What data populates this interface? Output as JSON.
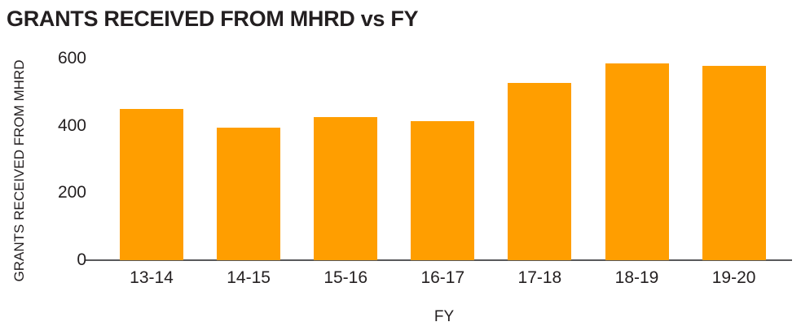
{
  "title": "GRANTS RECEIVED FROM MHRD vs FY",
  "colors": {
    "bar": "#ff9e00",
    "axis_line": "#58595b",
    "text": "#231f20",
    "background": "#ffffff"
  },
  "chart_data": {
    "type": "bar",
    "title": "GRANTS RECEIVED FROM MHRD vs FY",
    "categories": [
      "13-14",
      "14-15",
      "15-16",
      "16-17",
      "17-18",
      "18-19",
      "19-20"
    ],
    "values": [
      450,
      395,
      425,
      413,
      527,
      585,
      578
    ],
    "xlabel": "FY",
    "ylabel": "GRANTS RECEIVED FROM MHRD",
    "yticks": [
      0,
      200,
      400,
      600
    ],
    "ylim": [
      0,
      600
    ],
    "grid": false,
    "legend_position": "none",
    "bar_color": "#ff9e00"
  }
}
